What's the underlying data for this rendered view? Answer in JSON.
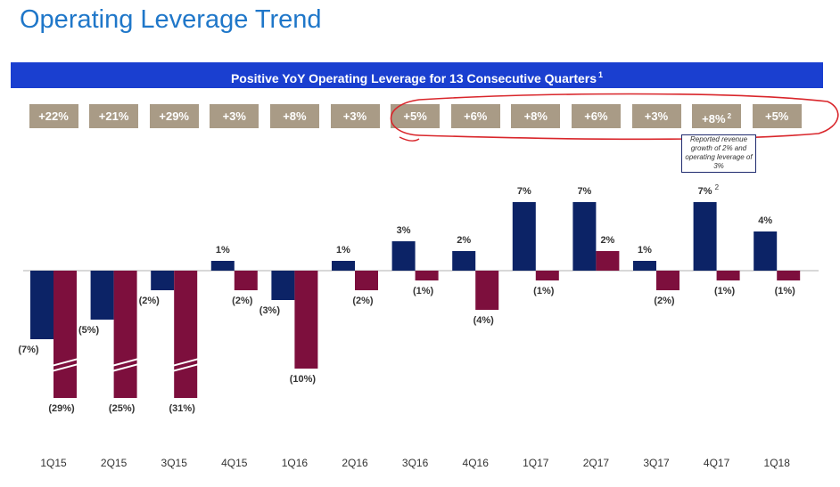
{
  "page": {
    "title": "Operating Leverage Trend",
    "banner": "Positive YoY Operating Leverage for 13 Consecutive Quarters",
    "banner_footnote": "1"
  },
  "leverage_boxes": [
    {
      "label": "+22%",
      "footnote": ""
    },
    {
      "label": "+21%",
      "footnote": ""
    },
    {
      "label": "+29%",
      "footnote": ""
    },
    {
      "label": "+3%",
      "footnote": ""
    },
    {
      "label": "+8%",
      "footnote": ""
    },
    {
      "label": "+3%",
      "footnote": ""
    },
    {
      "label": "+5%",
      "footnote": ""
    },
    {
      "label": "+6%",
      "footnote": ""
    },
    {
      "label": "+8%",
      "footnote": ""
    },
    {
      "label": "+6%",
      "footnote": ""
    },
    {
      "label": "+3%",
      "footnote": ""
    },
    {
      "label": "+8%",
      "footnote": "2"
    },
    {
      "label": "+5%",
      "footnote": ""
    }
  ],
  "note": {
    "text": "Reported revenue growth of 2% and operating leverage of 3%"
  },
  "colors": {
    "title": "#1f77c9",
    "banner": "#1a3fd0",
    "box": "#a99b86",
    "revenue_series": "#0c2366",
    "expense_series": "#7d0f3d",
    "annotation_circle": "#d9262b"
  },
  "chart_data": {
    "type": "bar",
    "title": "Positive YoY Operating Leverage for 13 Consecutive Quarters",
    "categories": [
      "1Q15",
      "2Q15",
      "3Q15",
      "4Q15",
      "1Q16",
      "2Q16",
      "3Q16",
      "4Q16",
      "1Q17",
      "2Q17",
      "3Q17",
      "4Q17",
      "1Q18"
    ],
    "series": [
      {
        "name": "Series A (navy)",
        "values": [
          -7,
          -5,
          -2,
          1,
          -3,
          1,
          3,
          2,
          7,
          7,
          1,
          7,
          4
        ],
        "labels": [
          "(7%)",
          "(5%)",
          "(2%)",
          "1%",
          "(3%)",
          "1%",
          "3%",
          "2%",
          "7%",
          "7%",
          "1%",
          "7%",
          "4%"
        ],
        "label_footnotes": [
          "",
          "",
          "",
          "",
          "",
          "",
          "",
          "",
          "",
          "",
          "",
          "2",
          ""
        ]
      },
      {
        "name": "Series B (maroon)",
        "values": [
          -29,
          -25,
          -31,
          -2,
          -10,
          -2,
          -1,
          -4,
          -1,
          2,
          -2,
          -1,
          -1
        ],
        "labels": [
          "(29%)",
          "(25%)",
          "(31%)",
          "(2%)",
          "(10%)",
          "(2%)",
          "(1%)",
          "(4%)",
          "(1%)",
          "2%",
          "(2%)",
          "(1%)",
          "(1%)"
        ],
        "axis_break": [
          true,
          true,
          true,
          false,
          false,
          false,
          false,
          false,
          false,
          false,
          false,
          false,
          false
        ]
      }
    ],
    "xlabel": "",
    "ylabel": "",
    "grid": false,
    "legend": "none"
  }
}
